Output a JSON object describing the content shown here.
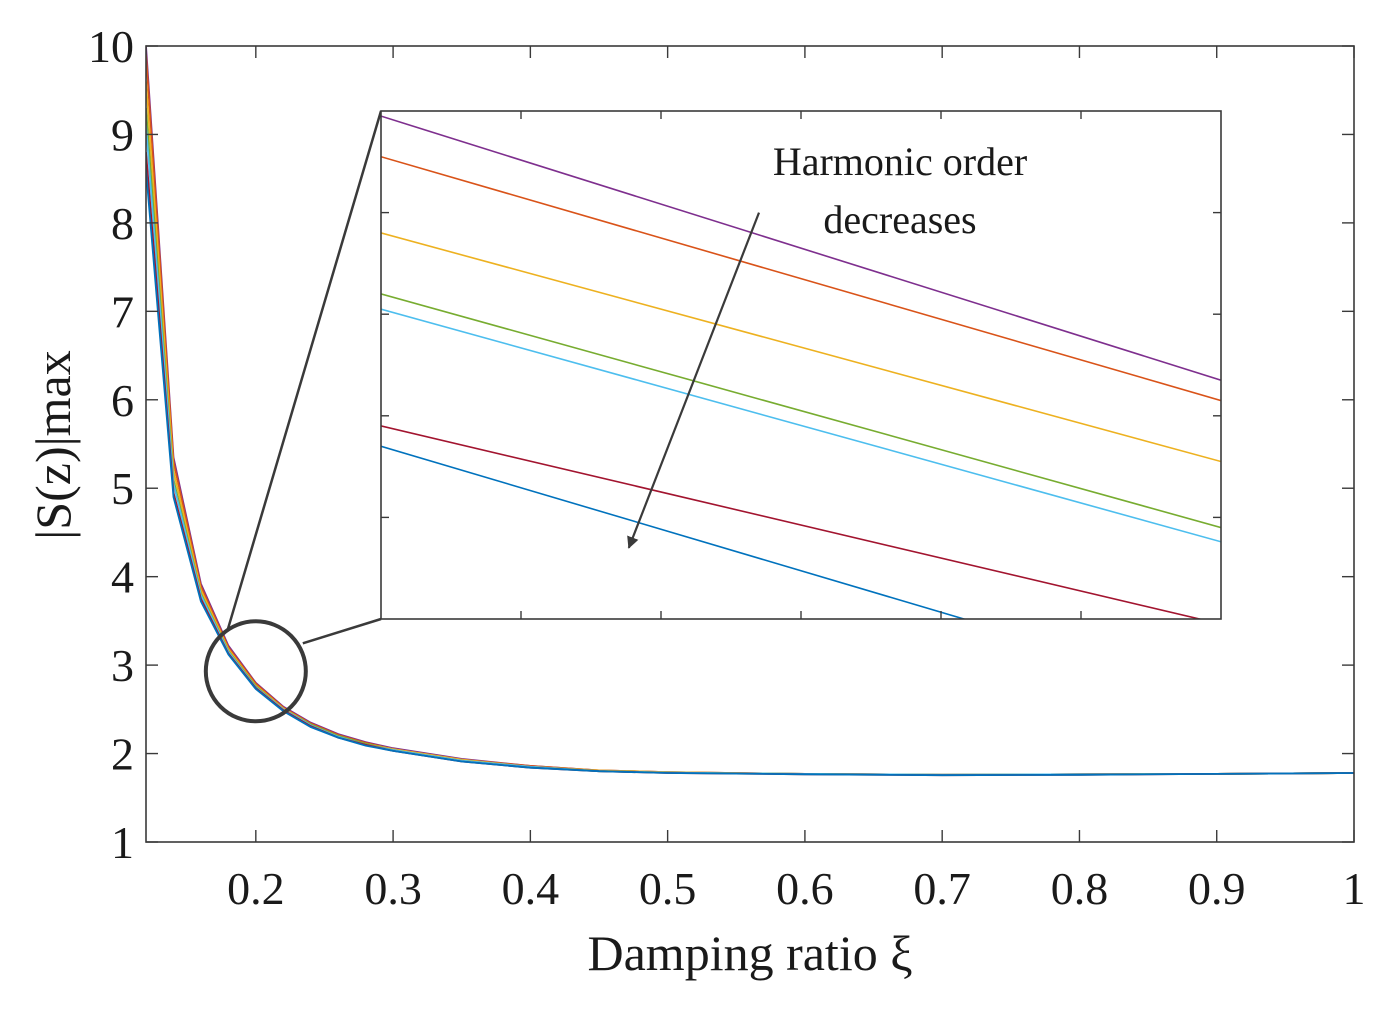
{
  "chart_data": {
    "type": "line",
    "xlabel": "Damping ratio ξ",
    "ylabel": "|S(z)|max",
    "xlim": [
      0.12,
      1.0
    ],
    "ylim": [
      1,
      10
    ],
    "x_ticks": [
      "0.2",
      "0.3",
      "0.4",
      "0.5",
      "0.6",
      "0.7",
      "0.8",
      "0.9",
      "1"
    ],
    "y_ticks": [
      "1",
      "2",
      "3",
      "4",
      "5",
      "6",
      "7",
      "8",
      "9",
      "10"
    ],
    "x_tick_values": [
      0.2,
      0.3,
      0.4,
      0.5,
      0.6,
      0.7,
      0.8,
      0.9,
      1.0
    ],
    "y_tick_values": [
      1,
      2,
      3,
      4,
      5,
      6,
      7,
      8,
      9,
      10
    ],
    "grid": false,
    "x": [
      0.12,
      0.14,
      0.16,
      0.18,
      0.2,
      0.22,
      0.24,
      0.26,
      0.28,
      0.3,
      0.35,
      0.4,
      0.45,
      0.5,
      0.6,
      0.7,
      0.8,
      0.9,
      1.0
    ],
    "series": [
      {
        "color": "#7e2f8e",
        "values": [
          10.0,
          5.35,
          3.92,
          3.22,
          2.8,
          2.53,
          2.35,
          2.22,
          2.13,
          2.06,
          1.94,
          1.86,
          1.81,
          1.79,
          1.77,
          1.76,
          1.765,
          1.77,
          1.78
        ]
      },
      {
        "color": "#d95319",
        "values": [
          9.9,
          5.3,
          3.89,
          3.2,
          2.79,
          2.52,
          2.34,
          2.21,
          2.12,
          2.05,
          1.93,
          1.86,
          1.81,
          1.79,
          1.77,
          1.76,
          1.765,
          1.77,
          1.78
        ]
      },
      {
        "color": "#edb120",
        "values": [
          9.6,
          5.2,
          3.85,
          3.18,
          2.77,
          2.51,
          2.33,
          2.2,
          2.11,
          2.05,
          1.93,
          1.85,
          1.81,
          1.79,
          1.77,
          1.76,
          1.765,
          1.77,
          1.78
        ]
      },
      {
        "color": "#77ac30",
        "values": [
          9.3,
          5.1,
          3.81,
          3.16,
          2.76,
          2.5,
          2.33,
          2.2,
          2.11,
          2.04,
          1.92,
          1.85,
          1.8,
          1.785,
          1.77,
          1.76,
          1.765,
          1.77,
          1.78
        ]
      },
      {
        "color": "#4dbeee",
        "values": [
          9.1,
          5.05,
          3.79,
          3.15,
          2.75,
          2.5,
          2.32,
          2.19,
          2.1,
          2.04,
          1.92,
          1.85,
          1.8,
          1.785,
          1.77,
          1.76,
          1.765,
          1.77,
          1.78
        ]
      },
      {
        "color": "#a2142f",
        "values": [
          8.8,
          4.95,
          3.75,
          3.13,
          2.74,
          2.49,
          2.31,
          2.18,
          2.1,
          2.03,
          1.91,
          1.84,
          1.8,
          1.78,
          1.765,
          1.755,
          1.76,
          1.77,
          1.78
        ]
      },
      {
        "color": "#0072bd",
        "values": [
          8.6,
          4.9,
          3.72,
          3.12,
          2.73,
          2.48,
          2.3,
          2.18,
          2.09,
          2.03,
          1.91,
          1.84,
          1.8,
          1.78,
          1.765,
          1.755,
          1.76,
          1.77,
          1.78
        ]
      }
    ],
    "zoom_circle": {
      "x": 0.2,
      "y": 2.93
    },
    "inset": {
      "xlim": [
        0,
        6
      ],
      "ylim": [
        0,
        5
      ],
      "series": [
        {
          "color": "#7e2f8e",
          "start": 4.95,
          "end": 2.35
        },
        {
          "color": "#d95319",
          "start": 4.55,
          "end": 2.15
        },
        {
          "color": "#edb120",
          "start": 3.8,
          "end": 1.55
        },
        {
          "color": "#77ac30",
          "start": 3.2,
          "end": 0.9
        },
        {
          "color": "#4dbeee",
          "start": 3.05,
          "end": 0.76
        },
        {
          "color": "#a2142f",
          "start": 1.9,
          "end": -0.05
        },
        {
          "color": "#0072bd",
          "start": 1.7,
          "end": -0.75
        }
      ]
    },
    "annotation": {
      "line1": "Harmonic order",
      "line2": "decreases",
      "arrow_from": [
        2.7,
        4.0
      ],
      "arrow_to": [
        1.77,
        0.7
      ]
    }
  }
}
